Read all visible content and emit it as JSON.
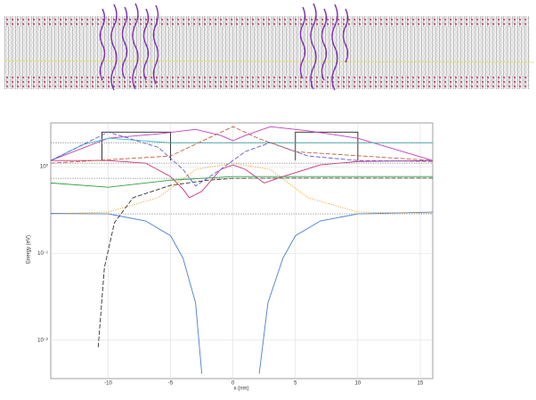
{
  "chart_data": {
    "type": "line",
    "xlabel": "x (nm)",
    "ylabel": "Energy (eV)",
    "log_y": true,
    "grid": true,
    "xlim": [
      -14.6,
      16
    ],
    "xticks": [
      -10,
      -5,
      0,
      5,
      10,
      15
    ],
    "ylim": [
      0.0036,
      3.2
    ],
    "yticks": [
      {
        "value": 0.01,
        "label": "10⁻²"
      },
      {
        "value": 0.1,
        "label": "10⁻¹"
      },
      {
        "value": 1,
        "label": "10⁰"
      }
    ],
    "series": [
      {
        "color": "#4a7fd0",
        "style": "solid",
        "x": [
          -14.6,
          -10,
          -7,
          -5,
          -4,
          -3,
          -2.5,
          null,
          2.1,
          2.8,
          4,
          5,
          7,
          10,
          16
        ],
        "values": [
          0.29,
          0.286,
          0.237,
          0.16,
          0.088,
          0.027,
          0.0041,
          null,
          0.0041,
          0.027,
          0.088,
          0.16,
          0.237,
          0.286,
          0.3
        ]
      },
      {
        "color": "#333333",
        "style": "dashed",
        "x": [
          -10.8,
          -10.3,
          -9.5,
          -8,
          -5,
          -2,
          0,
          5,
          10,
          16
        ],
        "values": [
          0.0083,
          0.069,
          0.226,
          0.44,
          0.61,
          0.7,
          0.735,
          0.74,
          0.74,
          0.74
        ]
      },
      {
        "color": "#222222",
        "style": "solid",
        "x": [
          -10.5,
          -10.5,
          -5,
          -5,
          null,
          5,
          5,
          10,
          10
        ],
        "values": [
          1.18,
          2.51,
          2.51,
          1.18,
          null,
          1.18,
          2.51,
          2.51,
          1.18
        ]
      },
      {
        "color": "#c040c0",
        "style": "solid",
        "x": [
          -14.6,
          -10,
          -6,
          -3,
          -1,
          0,
          1,
          3,
          6,
          10,
          16
        ],
        "values": [
          1.18,
          2.13,
          2.39,
          2.7,
          2.3,
          2.0,
          2.3,
          2.9,
          2.6,
          2.13,
          1.18
        ]
      },
      {
        "color": "#d0307a",
        "style": "solid",
        "x": [
          -14.6,
          -10,
          -7,
          -5,
          -4,
          -3.5,
          -2.5,
          -1,
          0,
          1,
          2.5,
          4,
          7,
          10,
          16
        ],
        "values": [
          1.18,
          1.18,
          1.1,
          0.77,
          0.55,
          0.44,
          0.52,
          0.93,
          1.05,
          0.93,
          0.65,
          0.77,
          1.05,
          1.15,
          1.18
        ]
      },
      {
        "color": "#f0a020",
        "style": "dotted",
        "x": [
          -14.6,
          -10,
          -6,
          -3,
          0,
          3,
          6,
          10,
          16
        ],
        "values": [
          0.286,
          0.3,
          0.44,
          0.93,
          1.1,
          0.93,
          0.44,
          0.3,
          0.29
        ]
      },
      {
        "color": "#30a040",
        "style": "solid",
        "x": [
          -14.6,
          -10,
          -5,
          0,
          5,
          10,
          16
        ],
        "values": [
          0.65,
          0.58,
          0.7,
          0.77,
          0.77,
          0.77,
          0.77
        ]
      },
      {
        "color": "#40c0c0",
        "style": "solid",
        "x": [
          -14.6,
          -12,
          -10,
          -5,
          0,
          5,
          10,
          16
        ],
        "values": [
          1.18,
          1.8,
          2.13,
          1.89,
          1.89,
          1.89,
          1.89,
          1.89
        ]
      },
      {
        "color": "#6060d0",
        "style": "dashed",
        "x": [
          -14.6,
          -10,
          -6,
          -4,
          -3,
          -1,
          1,
          3,
          6,
          10,
          16
        ],
        "values": [
          1.18,
          2.51,
          1.68,
          0.93,
          0.6,
          0.93,
          1.5,
          1.9,
          1.33,
          1.18,
          1.15
        ]
      },
      {
        "color": "#c06040",
        "style": "dashed",
        "x": [
          -14.6,
          -5,
          -2,
          0,
          2,
          5,
          16
        ],
        "values": [
          1.1,
          1.33,
          2.13,
          2.9,
          2.13,
          1.49,
          1.18
        ]
      },
      {
        "color": "#888888",
        "style": "dotted",
        "x": [
          -14.6,
          16
        ],
        "values": [
          1.89,
          1.89
        ]
      },
      {
        "color": "#888888",
        "style": "dotted",
        "x": [
          -14.6,
          16
        ],
        "values": [
          1.1,
          1.1
        ]
      },
      {
        "color": "#888888",
        "style": "dotted",
        "x": [
          -14.6,
          16
        ],
        "values": [
          0.735,
          0.735
        ]
      },
      {
        "color": "#888888",
        "style": "dotted",
        "x": [
          -14.6,
          16
        ],
        "values": [
          0.286,
          0.286
        ]
      }
    ]
  }
}
